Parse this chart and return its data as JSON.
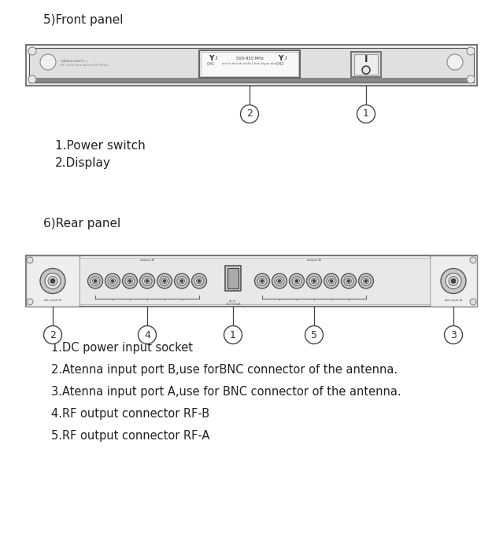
{
  "title_front": "5)Front panel",
  "title_rear": "6)Rear panel",
  "labels_front": [
    "1.Power switch",
    "2.Display"
  ],
  "labels_rear": [
    "1.DC power input socket",
    "2.Atenna input port B,use forBNC connector of the antenna.",
    "3.Atenna input port A,use for BNC connector of the antenna.",
    "4.RF output connector RF-B",
    "5.RF output connector RF-A"
  ],
  "bg_color": "#ffffff",
  "text_color": "#222222",
  "panel_outer_color": "#f5f5f5",
  "panel_border_color": "#888888",
  "panel_inner_dark": "#c8c8c8",
  "bnc_outer": "#b0b0b0",
  "bnc_inner": "#e0e0e0",
  "bnc_dot": "#444444"
}
